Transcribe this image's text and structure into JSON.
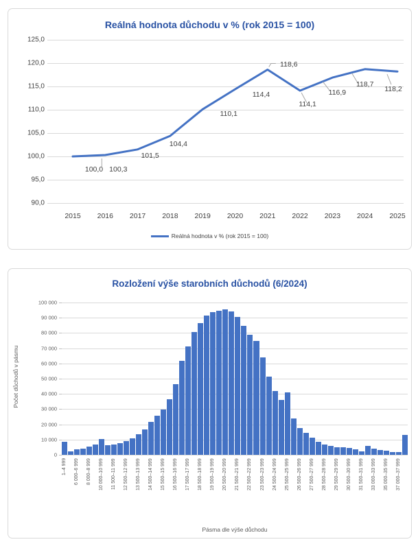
{
  "colors": {
    "accent_blue": "#4472C4",
    "title_blue": "#2851A3",
    "grid_gray": "#D9D9D9",
    "text_gray": "#595959",
    "label_dark": "#404040",
    "leader_gray": "#A6A6A6"
  },
  "chart_data": [
    {
      "id": "real-pension-value-line",
      "type": "line",
      "title": "Reálná hodnota důchodu v % (rok 2015 = 100)",
      "categories": [
        "2015",
        "2016",
        "2017",
        "2018",
        "2019",
        "2020",
        "2021",
        "2022",
        "2023",
        "2024",
        "2025"
      ],
      "values": [
        100.0,
        100.3,
        101.5,
        104.4,
        110.1,
        114.4,
        118.6,
        114.1,
        116.9,
        118.7,
        118.2
      ],
      "point_labels": [
        "100,0",
        "100,3",
        "101,5",
        "104,4",
        "110,1",
        "114,4",
        "118,6",
        "114,1",
        "116,9",
        "118,7",
        "118,2"
      ],
      "ylim": [
        90,
        125
      ],
      "ytick_step": 5,
      "ytick_labels": [
        "125,0",
        "120,0",
        "115,0",
        "110,0",
        "105,0",
        "100,0",
        "95,0",
        "90,0"
      ],
      "grid": true,
      "legend_position": "bottom",
      "legend": [
        "Reálná hodnota v % (rok 2015 = 100)"
      ]
    },
    {
      "id": "pension-distribution-bar",
      "type": "bar",
      "title": "Rozložení výše starobních důchodů (6/2024)",
      "xlabel": "Pásma dle výše důchodu",
      "ylabel": "Počet důchodů v pásmu",
      "ylim": [
        0,
        100000
      ],
      "ytick_step": 10000,
      "ytick_labels": [
        "0",
        "10 000",
        "20 000",
        "30 000",
        "40 000",
        "50 000",
        "60 000",
        "70 000",
        "80 000",
        "90 000",
        "100 000"
      ],
      "grid": true,
      "tick_labels": [
        "1–4 999",
        "",
        "6 000–6 999",
        "",
        "8 000–8 999",
        "",
        "10 000–10 999",
        "",
        "11 500–11 999",
        "",
        "12 500–12 999",
        "",
        "13 500–13 999",
        "",
        "14 500–14 999",
        "",
        "15 500–15 999",
        "",
        "16 500–16 999",
        "",
        "17 500–17 999",
        "",
        "18 500–18 999",
        "",
        "19 500–19 999",
        "",
        "20 500–20 999",
        "",
        "21 500–21 999",
        "",
        "22 500–22 999",
        "",
        "23 500–23 999",
        "",
        "24 500–24 999",
        "",
        "25 500–25 999",
        "",
        "26 500–26 999",
        "",
        "27 500–27 999",
        "",
        "28 500–28 999",
        "",
        "29 500–29 999",
        "",
        "30 500–30 999",
        "",
        "31 500–31 999",
        "",
        "33 000–33 999",
        "",
        "35 000–35 999",
        "",
        "37 000–37 999",
        ""
      ],
      "values": [
        8700,
        2100,
        3700,
        4300,
        5600,
        6600,
        10300,
        6400,
        6900,
        7700,
        9100,
        10900,
        13400,
        16600,
        21500,
        25500,
        29700,
        36500,
        46500,
        61900,
        71200,
        80600,
        86500,
        91300,
        93700,
        94600,
        95300,
        94000,
        90400,
        84500,
        79000,
        74800,
        63900,
        51300,
        41700,
        36000,
        40900,
        23800,
        17800,
        14300,
        11100,
        8800,
        7000,
        5800,
        5200,
        4800,
        4600,
        3500,
        2400,
        5800,
        4000,
        3100,
        2600,
        1600,
        2000,
        13300
      ]
    }
  ]
}
